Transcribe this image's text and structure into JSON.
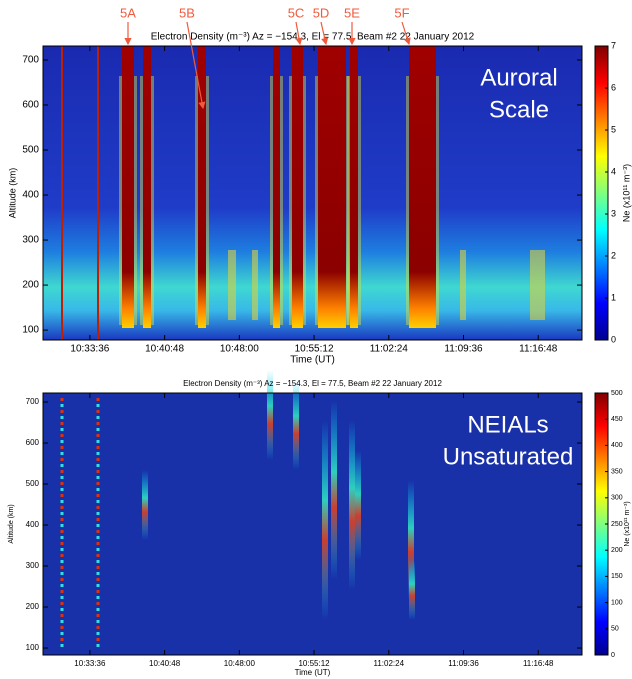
{
  "chart_data": [
    {
      "type": "heatmap",
      "title": "Electron Density (m⁻³)  Az = −154.3, El = 77.5,  Beam #2  22 January 2012",
      "xlabel": "Time (UT)",
      "ylabel": "Altitude (km)",
      "xlim": [
        37745,
        40861
      ],
      "xticks": [
        {
          "value": 38016,
          "label": "10:33:36"
        },
        {
          "value": 38448,
          "label": "10:40:48"
        },
        {
          "value": 38880,
          "label": "10:48:00"
        },
        {
          "value": 39312,
          "label": "10:55:12"
        },
        {
          "value": 39744,
          "label": "11:02:24"
        },
        {
          "value": 40176,
          "label": "11:09:36"
        },
        {
          "value": 40608,
          "label": "11:16:48"
        }
      ],
      "ylim": [
        78,
        731
      ],
      "yticks": [
        100,
        200,
        300,
        400,
        500,
        600,
        700
      ],
      "colorbar": {
        "label": "Ne (x10¹¹ m⁻³)",
        "lim": [
          0,
          7
        ],
        "ticks": [
          0,
          1,
          2,
          3,
          4,
          5,
          6,
          7
        ]
      },
      "events": [
        "5A",
        "5B",
        "5C",
        "5D",
        "5E",
        "5F"
      ],
      "overlay_text": [
        "Auroral",
        "Scale"
      ]
    },
    {
      "type": "heatmap",
      "title": "Electron Density (m⁻³)  Az = −154.3, El = 77.5,  Beam #2  22 January 2012",
      "xlabel": "Time (UT)",
      "ylabel": "Altitude (km)",
      "xlim": [
        37745,
        40861
      ],
      "xticks": [
        {
          "value": 38016,
          "label": "10:33:36"
        },
        {
          "value": 38448,
          "label": "10:40:48"
        },
        {
          "value": 38880,
          "label": "10:48:00"
        },
        {
          "value": 39312,
          "label": "10:55:12"
        },
        {
          "value": 39744,
          "label": "11:02:24"
        },
        {
          "value": 40176,
          "label": "11:09:36"
        },
        {
          "value": 40608,
          "label": "11:16:48"
        }
      ],
      "ylim": [
        83,
        722
      ],
      "yticks": [
        100,
        200,
        300,
        400,
        500,
        600,
        700
      ],
      "colorbar": {
        "label": "Ne (x10¹¹ m⁻³)",
        "lim": [
          0,
          500
        ],
        "ticks": [
          0,
          50,
          100,
          150,
          200,
          250,
          300,
          350,
          400,
          450,
          500
        ]
      },
      "overlay_text": [
        "NEIALs",
        "Unsaturated"
      ]
    }
  ]
}
